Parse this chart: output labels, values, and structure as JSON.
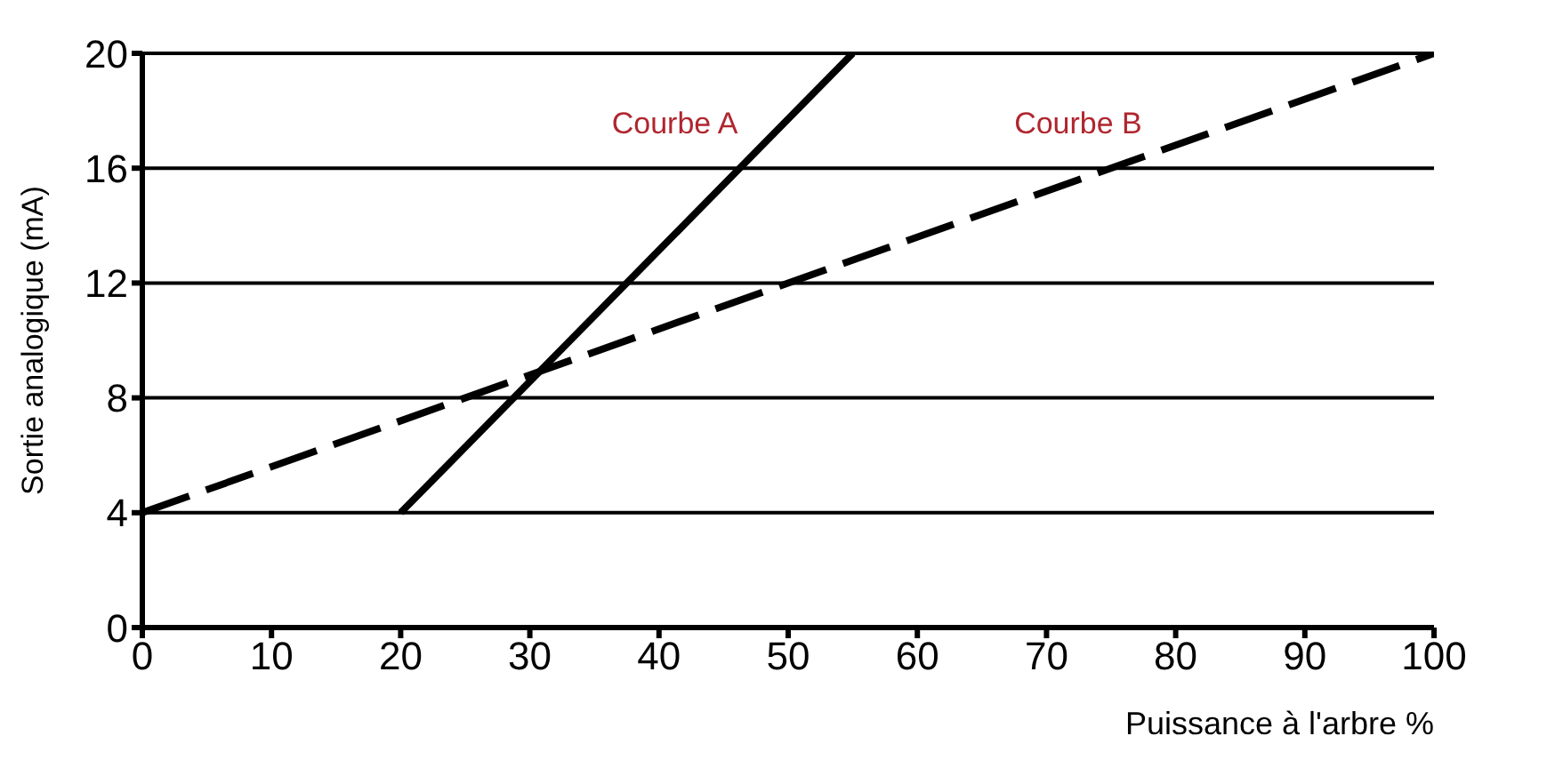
{
  "chart_data": {
    "type": "line",
    "xlabel": "Puissance à l'arbre %",
    "ylabel": "Sortie analogique (mA)",
    "series": [
      {
        "name": "Courbe A",
        "color": "#000000",
        "x": [
          20,
          55
        ],
        "values": [
          4,
          20
        ],
        "line_style": "solid"
      },
      {
        "name": "Courbe B",
        "color": "#000000",
        "x": [
          0,
          100
        ],
        "values": [
          4,
          20
        ],
        "line_style": "dashed"
      }
    ],
    "xlim": [
      0,
      100
    ],
    "xticks": [
      0,
      10,
      20,
      30,
      40,
      50,
      60,
      70,
      80,
      90,
      100
    ],
    "ylim": [
      0,
      20
    ],
    "yticks": [
      0,
      4,
      8,
      12,
      16,
      20
    ],
    "grid": "y",
    "marker": "none"
  }
}
